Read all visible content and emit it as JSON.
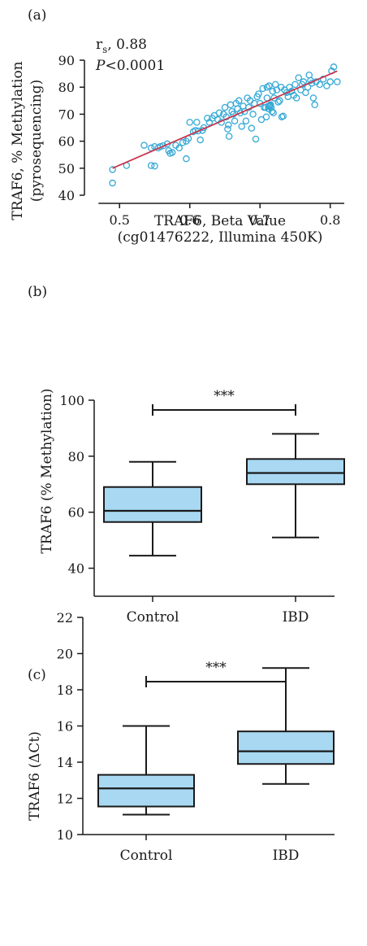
{
  "chart_data": [
    {
      "type": "scatter",
      "panel_label": "(a)",
      "xlabel": [
        "TRAF6, Beta Value",
        "(cg01476222, Illumina 450K)"
      ],
      "ylabel": [
        "TRAF6, % Methylation",
        "(pyrosequencing)"
      ],
      "xlim": [
        0.45,
        0.82
      ],
      "ylim": [
        40,
        90
      ],
      "xticks": [
        "0.5",
        "0.6",
        "0.7",
        "0.8"
      ],
      "yticks": [
        "40",
        "50",
        "60",
        "70",
        "80",
        "90"
      ],
      "annotation": {
        "rs_label": "r",
        "rs_sub": "s",
        "rs_value": ", 0.88",
        "p_label": "P",
        "p_value": "<0.0001"
      },
      "regression": {
        "x": [
          0.49,
          0.81
        ],
        "y": [
          50,
          86
        ]
      },
      "colors": {
        "points": "#35a9d6",
        "line": "#c8384f"
      },
      "points": [
        [
          0.49,
          44.5
        ],
        [
          0.49,
          49.5
        ],
        [
          0.51,
          51
        ],
        [
          0.535,
          58.5
        ],
        [
          0.545,
          57.5
        ],
        [
          0.545,
          51
        ],
        [
          0.55,
          50.8
        ],
        [
          0.55,
          58
        ],
        [
          0.555,
          57.5
        ],
        [
          0.558,
          58
        ],
        [
          0.562,
          58.3
        ],
        [
          0.568,
          59
        ],
        [
          0.57,
          56.5
        ],
        [
          0.572,
          55.5
        ],
        [
          0.575,
          55.8
        ],
        [
          0.58,
          58.5
        ],
        [
          0.585,
          57.5
        ],
        [
          0.59,
          59.5
        ],
        [
          0.595,
          60
        ],
        [
          0.595,
          53.5
        ],
        [
          0.598,
          61
        ],
        [
          0.6,
          67
        ],
        [
          0.605,
          63.5
        ],
        [
          0.608,
          64
        ],
        [
          0.61,
          67
        ],
        [
          0.612,
          63.8
        ],
        [
          0.615,
          60.5
        ],
        [
          0.618,
          64
        ],
        [
          0.62,
          65
        ],
        [
          0.625,
          68.5
        ],
        [
          0.628,
          67
        ],
        [
          0.632,
          68.5
        ],
        [
          0.635,
          69.5
        ],
        [
          0.64,
          68
        ],
        [
          0.642,
          70.5
        ],
        [
          0.645,
          67
        ],
        [
          0.648,
          70
        ],
        [
          0.65,
          72.5
        ],
        [
          0.652,
          69
        ],
        [
          0.654,
          64.5
        ],
        [
          0.655,
          66
        ],
        [
          0.656,
          61.8
        ],
        [
          0.658,
          73.5
        ],
        [
          0.66,
          71
        ],
        [
          0.662,
          70
        ],
        [
          0.664,
          67.5
        ],
        [
          0.666,
          74
        ],
        [
          0.668,
          72
        ],
        [
          0.67,
          75
        ],
        [
          0.672,
          70.5
        ],
        [
          0.674,
          65.5
        ],
        [
          0.676,
          73
        ],
        [
          0.678,
          71
        ],
        [
          0.68,
          67.5
        ],
        [
          0.682,
          76
        ],
        [
          0.684,
          72.5
        ],
        [
          0.686,
          75
        ],
        [
          0.688,
          64.8
        ],
        [
          0.69,
          70
        ],
        [
          0.692,
          74
        ],
        [
          0.694,
          60.8
        ],
        [
          0.696,
          76.5
        ],
        [
          0.698,
          77.5
        ],
        [
          0.7,
          74
        ],
        [
          0.702,
          68
        ],
        [
          0.704,
          79.5
        ],
        [
          0.706,
          72.5
        ],
        [
          0.708,
          72.5
        ],
        [
          0.709,
          69
        ],
        [
          0.71,
          76
        ],
        [
          0.71,
          80
        ],
        [
          0.712,
          73
        ],
        [
          0.712,
          72
        ],
        [
          0.713,
          80.5
        ],
        [
          0.714,
          72.8
        ],
        [
          0.714,
          73.2
        ],
        [
          0.715,
          73.5
        ],
        [
          0.716,
          72.5
        ],
        [
          0.717,
          71
        ],
        [
          0.718,
          78.5
        ],
        [
          0.719,
          70.5
        ],
        [
          0.72,
          76
        ],
        [
          0.722,
          81
        ],
        [
          0.724,
          79
        ],
        [
          0.726,
          74.5
        ],
        [
          0.728,
          75
        ],
        [
          0.73,
          80
        ],
        [
          0.731,
          69
        ],
        [
          0.733,
          69.3
        ],
        [
          0.735,
          79
        ],
        [
          0.738,
          78
        ],
        [
          0.74,
          76.5
        ],
        [
          0.742,
          80
        ],
        [
          0.745,
          78.5
        ],
        [
          0.748,
          77
        ],
        [
          0.75,
          81
        ],
        [
          0.752,
          76
        ],
        [
          0.755,
          83.5
        ],
        [
          0.758,
          79
        ],
        [
          0.76,
          81
        ],
        [
          0.762,
          82
        ],
        [
          0.765,
          78
        ],
        [
          0.768,
          80
        ],
        [
          0.77,
          84.5
        ],
        [
          0.772,
          82.5
        ],
        [
          0.774,
          81.5
        ],
        [
          0.776,
          76
        ],
        [
          0.778,
          73.5
        ],
        [
          0.78,
          82
        ],
        [
          0.785,
          81
        ],
        [
          0.79,
          83
        ],
        [
          0.795,
          80.5
        ],
        [
          0.8,
          82
        ],
        [
          0.802,
          86
        ],
        [
          0.805,
          87.5
        ],
        [
          0.81,
          82
        ]
      ]
    },
    {
      "type": "box",
      "panel_label": "(b)",
      "ylabel": "TRAF6 (% Methylation)",
      "ylim": [
        30,
        100
      ],
      "yticks": [
        "40",
        "60",
        "80",
        "100"
      ],
      "categories": [
        "Control",
        "IBD"
      ],
      "boxes": [
        {
          "min": 44.5,
          "q1": 56.5,
          "median": 60.5,
          "q3": 69,
          "max": 78
        },
        {
          "min": 51,
          "q1": 70,
          "median": 74,
          "q3": 79,
          "max": 88
        }
      ],
      "significance": "***",
      "colors": {
        "box": "#a8d8f2",
        "stroke": "#1a1a1a"
      }
    },
    {
      "type": "box",
      "panel_label": "(c)",
      "ylabel": "TRAF6 (ΔCt)",
      "ylim": [
        10,
        22
      ],
      "yticks": [
        "10",
        "12",
        "14",
        "16",
        "18",
        "20",
        "22"
      ],
      "categories": [
        "Control",
        "IBD"
      ],
      "boxes": [
        {
          "min": 11.1,
          "q1": 11.55,
          "median": 12.55,
          "q3": 13.3,
          "max": 16
        },
        {
          "min": 12.8,
          "q1": 13.9,
          "median": 14.6,
          "q3": 15.7,
          "max": 19.2
        }
      ],
      "significance": "***",
      "colors": {
        "box": "#a8d8f2",
        "stroke": "#1a1a1a"
      }
    }
  ]
}
